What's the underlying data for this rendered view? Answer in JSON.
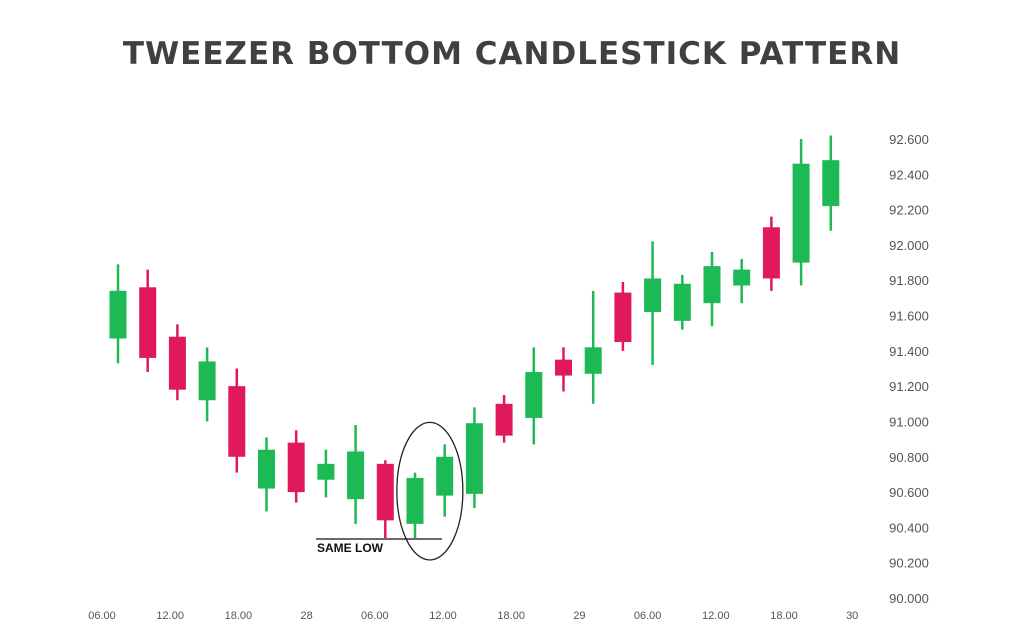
{
  "chart_data": {
    "type": "candlestick",
    "title": "TWEEZER BOTTOM CANDLESTICK PATTERN",
    "xlabel": "",
    "ylabel": "",
    "ylim": [
      90.0,
      92.6
    ],
    "y_ticks": [
      "92.600",
      "92.400",
      "92.200",
      "92.000",
      "91.800",
      "91.600",
      "91.400",
      "91.200",
      "91.000",
      "90.800",
      "90.600",
      "90.400",
      "90.200",
      "90.000"
    ],
    "x_ticks": [
      "06.00",
      "12.00",
      "18.00",
      "28",
      "06.00",
      "12.00",
      "18.00",
      "29",
      "06.00",
      "12.00",
      "18.00",
      "30"
    ],
    "colors": {
      "up": "#1db954",
      "down": "#e0185e",
      "axis_text": "#555555",
      "title": "#404040"
    },
    "annotation": {
      "label": "SAME LOW",
      "highlight_candles": [
        10,
        11
      ]
    },
    "candles": [
      {
        "open": 91.47,
        "close": 91.74,
        "high": 91.89,
        "low": 91.33
      },
      {
        "open": 91.76,
        "close": 91.36,
        "high": 91.86,
        "low": 91.28
      },
      {
        "open": 91.48,
        "close": 91.18,
        "high": 91.55,
        "low": 91.12
      },
      {
        "open": 91.12,
        "close": 91.34,
        "high": 91.42,
        "low": 91.0
      },
      {
        "open": 91.2,
        "close": 90.8,
        "high": 91.3,
        "low": 90.71
      },
      {
        "open": 90.62,
        "close": 90.84,
        "high": 90.91,
        "low": 90.49
      },
      {
        "open": 90.88,
        "close": 90.6,
        "high": 90.95,
        "low": 90.54
      },
      {
        "open": 90.67,
        "close": 90.76,
        "high": 90.84,
        "low": 90.57
      },
      {
        "open": 90.56,
        "close": 90.83,
        "high": 90.98,
        "low": 90.42
      },
      {
        "open": 90.76,
        "close": 90.44,
        "high": 90.78,
        "low": 90.34
      },
      {
        "open": 90.42,
        "close": 90.68,
        "high": 90.71,
        "low": 90.34
      },
      {
        "open": 90.58,
        "close": 90.8,
        "high": 90.87,
        "low": 90.46
      },
      {
        "open": 90.59,
        "close": 90.99,
        "high": 91.08,
        "low": 90.51
      },
      {
        "open": 91.1,
        "close": 90.92,
        "high": 91.15,
        "low": 90.88
      },
      {
        "open": 91.02,
        "close": 91.28,
        "high": 91.42,
        "low": 90.87
      },
      {
        "open": 91.35,
        "close": 91.26,
        "high": 91.42,
        "low": 91.17
      },
      {
        "open": 91.27,
        "close": 91.42,
        "high": 91.74,
        "low": 91.1
      },
      {
        "open": 91.73,
        "close": 91.45,
        "high": 91.79,
        "low": 91.4
      },
      {
        "open": 91.62,
        "close": 91.81,
        "high": 92.02,
        "low": 91.32
      },
      {
        "open": 91.57,
        "close": 91.78,
        "high": 91.83,
        "low": 91.52
      },
      {
        "open": 91.67,
        "close": 91.88,
        "high": 91.96,
        "low": 91.54
      },
      {
        "open": 91.77,
        "close": 91.86,
        "high": 91.92,
        "low": 91.67
      },
      {
        "open": 92.1,
        "close": 91.81,
        "high": 92.16,
        "low": 91.74
      },
      {
        "open": 91.9,
        "close": 92.46,
        "high": 92.6,
        "low": 91.77
      },
      {
        "open": 92.22,
        "close": 92.48,
        "high": 92.62,
        "low": 92.08
      }
    ]
  }
}
